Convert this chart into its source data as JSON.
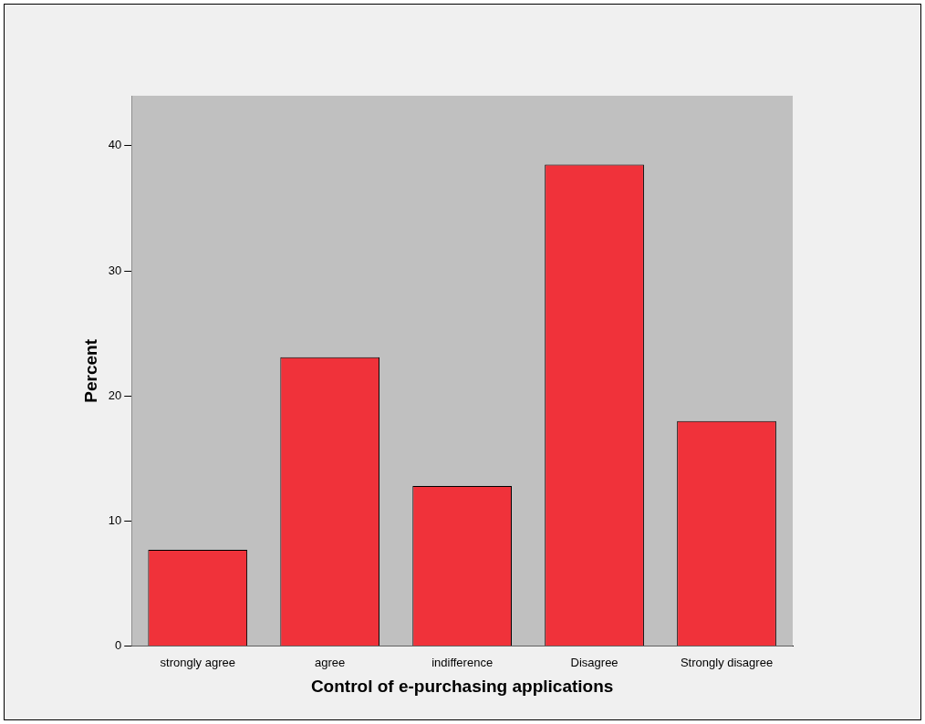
{
  "chart_data": {
    "type": "bar",
    "xlabel": "Control of e-purchasing applications",
    "ylabel": "Percent",
    "categories": [
      "strongly agree",
      "agree",
      "indifference",
      "Disagree",
      "Strongly disagree"
    ],
    "values": [
      7.7,
      23.1,
      12.8,
      38.5,
      18.0
    ],
    "color": "#f0323a",
    "ylim": [
      0,
      44
    ],
    "yticks": [
      0,
      10,
      20,
      30,
      40
    ],
    "grid": false,
    "legend": false
  }
}
